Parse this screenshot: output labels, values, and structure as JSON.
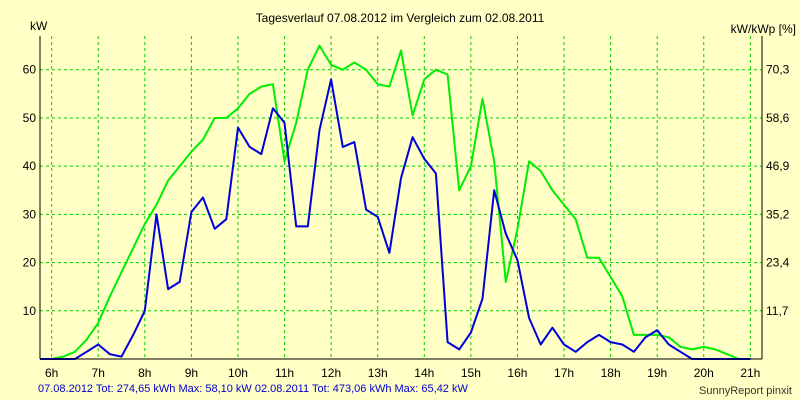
{
  "chart_data": {
    "type": "line",
    "title": "Tagesverlauf 07.08.2012 im Vergleich zum 02.08.2011",
    "ylabel": "kW",
    "y2label": "kW/kWp [%]",
    "xlim": [
      5.75,
      21.25
    ],
    "ylim": [
      0,
      67
    ],
    "grid": true,
    "x_ticks": [
      6,
      7,
      8,
      9,
      10,
      11,
      12,
      13,
      14,
      15,
      16,
      17,
      18,
      19,
      20,
      21
    ],
    "x_tick_labels": [
      "6h",
      "7h",
      "8h",
      "9h",
      "10h",
      "11h",
      "12h",
      "13h",
      "14h",
      "15h",
      "16h",
      "17h",
      "18h",
      "19h",
      "20h",
      "21h"
    ],
    "y_ticks": [
      10,
      20,
      30,
      40,
      50,
      60
    ],
    "y_tick_labels": [
      "10",
      "20",
      "30",
      "40",
      "50",
      "60"
    ],
    "y2_ticks": [
      10,
      20,
      30,
      40,
      50,
      60
    ],
    "y2_tick_labels": [
      "11,7",
      "23,4",
      "35,2",
      "46,9",
      "58,6",
      "70,3"
    ],
    "series": [
      {
        "name": "02.08.2011",
        "color": "#00ee00",
        "x": [
          5.75,
          6.0,
          6.25,
          6.5,
          6.75,
          7.0,
          7.25,
          7.5,
          7.75,
          8.0,
          8.25,
          8.5,
          8.75,
          9.0,
          9.25,
          9.5,
          9.75,
          10.0,
          10.25,
          10.5,
          10.75,
          11.0,
          11.25,
          11.5,
          11.75,
          12.0,
          12.25,
          12.5,
          12.75,
          13.0,
          13.25,
          13.5,
          13.75,
          14.0,
          14.25,
          14.5,
          14.75,
          15.0,
          15.25,
          15.5,
          15.75,
          16.0,
          16.25,
          16.5,
          16.75,
          17.0,
          17.25,
          17.5,
          17.75,
          18.0,
          18.25,
          18.5,
          18.75,
          19.0,
          19.25,
          19.5,
          19.75,
          20.0,
          20.25,
          20.5,
          20.75,
          21.0
        ],
        "values": [
          0,
          0,
          0.5,
          1.5,
          4,
          7.5,
          13,
          18,
          23,
          28,
          32,
          37,
          40,
          43,
          45.5,
          50,
          50,
          52,
          55,
          56.5,
          57,
          41,
          49,
          60,
          65,
          61,
          60,
          61.5,
          60,
          57,
          56.5,
          64,
          50.5,
          58,
          60,
          59,
          35,
          40,
          54,
          41,
          16,
          27,
          41,
          39,
          35,
          32,
          29,
          21,
          21,
          17,
          13,
          5,
          5,
          5,
          4.5,
          2.5,
          2,
          2.5,
          2,
          1,
          0,
          0
        ]
      },
      {
        "name": "07.08.2012",
        "color": "#0000dd",
        "x": [
          5.75,
          6.0,
          6.25,
          6.5,
          6.75,
          7.0,
          7.25,
          7.5,
          7.75,
          8.0,
          8.25,
          8.5,
          8.75,
          9.0,
          9.25,
          9.5,
          9.75,
          10.0,
          10.25,
          10.5,
          10.75,
          11.0,
          11.25,
          11.5,
          11.75,
          12.0,
          12.25,
          12.5,
          12.75,
          13.0,
          13.25,
          13.5,
          13.75,
          14.0,
          14.25,
          14.5,
          14.75,
          15.0,
          15.25,
          15.5,
          15.75,
          16.0,
          16.25,
          16.5,
          16.75,
          17.0,
          17.25,
          17.5,
          17.75,
          18.0,
          18.25,
          18.5,
          18.75,
          19.0,
          19.25,
          19.5,
          19.75,
          20.0,
          20.25,
          20.5,
          20.75,
          21.0
        ],
        "values": [
          0,
          0,
          0,
          0,
          1.5,
          3,
          1,
          0.5,
          5,
          10,
          30,
          14.5,
          16,
          30.5,
          33.5,
          27,
          29,
          48,
          44,
          42.5,
          52,
          49,
          27.5,
          27.5,
          47.5,
          58,
          44,
          45,
          31,
          29.5,
          22,
          37.5,
          46,
          41.5,
          38.5,
          3.5,
          2,
          5.5,
          12.5,
          35,
          26,
          20.5,
          8.5,
          3,
          6.5,
          3,
          1.5,
          3.5,
          5,
          3.5,
          3,
          1.5,
          4.5,
          6,
          3,
          1.5,
          0,
          0,
          0,
          0,
          0,
          0
        ]
      }
    ]
  },
  "footer": {
    "left_line": "07.08.2012 Tot: 274,65 kWh Max: 58,10 kW 02.08.2011 Tot: 473,06 kWh Max: 65,42 kW",
    "right": "SunnyReport pinxit"
  },
  "colors": {
    "background": "#ffffc6",
    "grid": "#00cc00",
    "axis": "#000000"
  }
}
